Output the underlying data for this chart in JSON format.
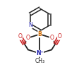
{
  "bg_color": "#f0f0f0",
  "bond_color": "#222222",
  "atom_colors": {
    "N": "#1a1aaa",
    "B": "#cc6600",
    "O": "#cc2222",
    "C": "#222222"
  },
  "figsize": [
    1.13,
    1.02
  ],
  "dpi": 100
}
